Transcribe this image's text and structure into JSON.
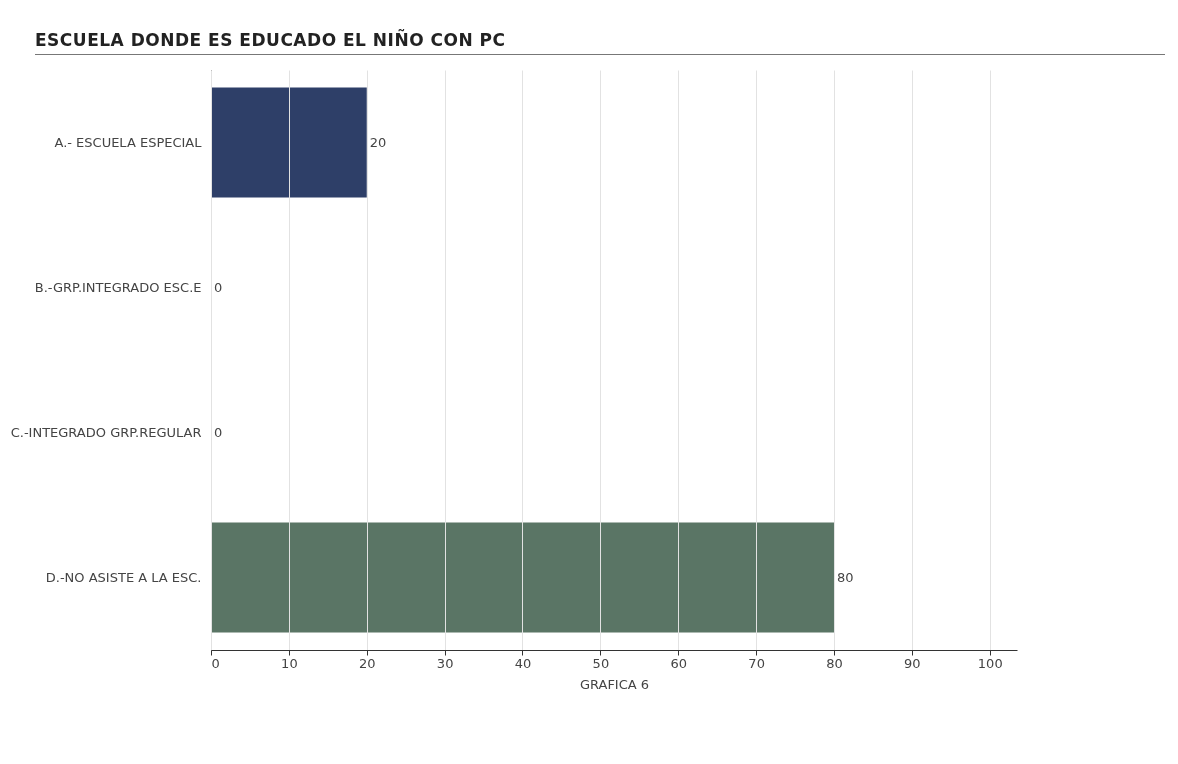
{
  "chart_data": {
    "type": "bar",
    "orientation": "horizontal",
    "title": "ESCUELA DONDE ES EDUCADO EL NIÑO CON PC",
    "xlabel": "GRAFICA 6",
    "categories": [
      "A.- ESCUELA ESPECIAL",
      "B.-GRP.INTEGRADO ESC.E",
      "C.-INTEGRADO GRP.REGULAR",
      "D.-NO ASISTE A LA ESC."
    ],
    "values": [
      20,
      0,
      0,
      80
    ],
    "colors": [
      "#2e3f68",
      "#2e3f68",
      "#5a7565",
      "#5a7565"
    ],
    "xlim": [
      0,
      103.5
    ],
    "xticks": [
      0,
      10,
      20,
      30,
      40,
      50,
      60,
      70,
      80,
      90,
      100
    ],
    "grid": "x",
    "data_labels": true,
    "legend": false
  }
}
